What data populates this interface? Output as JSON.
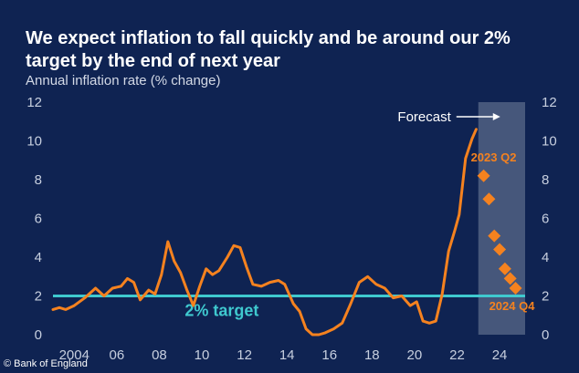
{
  "chart_data": {
    "type": "line",
    "title": "We expect inflation to fall quickly and be around our 2% target by the end of next year",
    "ylabel": "Annual inflation rate (% change)",
    "ylim": [
      0,
      12
    ],
    "xlim": [
      2003,
      2025.2
    ],
    "yticks": [
      0,
      2,
      4,
      6,
      8,
      10,
      12
    ],
    "yticks_right": [
      0,
      2,
      4,
      6,
      8,
      10,
      12
    ],
    "xtick_labels": [
      {
        "x": 2004,
        "label": "2004"
      },
      {
        "x": 2006,
        "label": "06"
      },
      {
        "x": 2008,
        "label": "08"
      },
      {
        "x": 2010,
        "label": "10"
      },
      {
        "x": 2012,
        "label": "12"
      },
      {
        "x": 2014,
        "label": "14"
      },
      {
        "x": 2016,
        "label": "16"
      },
      {
        "x": 2018,
        "label": "18"
      },
      {
        "x": 2020,
        "label": "20"
      },
      {
        "x": 2022,
        "label": "22"
      },
      {
        "x": 2024,
        "label": "24"
      }
    ],
    "series": [
      {
        "name": "Annual inflation rate",
        "color": "#f5821f",
        "x": [
          2003.0,
          2003.3,
          2003.6,
          2004.0,
          2004.5,
          2005.0,
          2005.4,
          2005.8,
          2006.2,
          2006.5,
          2006.8,
          2007.1,
          2007.5,
          2007.8,
          2008.1,
          2008.4,
          2008.7,
          2009.0,
          2009.3,
          2009.6,
          2009.9,
          2010.2,
          2010.5,
          2010.8,
          2011.2,
          2011.5,
          2011.8,
          2012.1,
          2012.4,
          2012.8,
          2013.2,
          2013.6,
          2013.9,
          2014.3,
          2014.6,
          2014.9,
          2015.2,
          2015.5,
          2015.8,
          2016.2,
          2016.6,
          2017.0,
          2017.4,
          2017.8,
          2018.2,
          2018.6,
          2019.0,
          2019.4,
          2019.8,
          2020.1,
          2020.4,
          2020.7,
          2021.0,
          2021.3,
          2021.6,
          2021.9,
          2022.1,
          2022.4,
          2022.7,
          2022.9
        ],
        "values": [
          1.3,
          1.4,
          1.3,
          1.5,
          1.9,
          2.4,
          2.0,
          2.4,
          2.5,
          2.9,
          2.7,
          1.8,
          2.3,
          2.1,
          3.1,
          4.8,
          3.8,
          3.2,
          2.3,
          1.5,
          2.5,
          3.4,
          3.1,
          3.3,
          4.0,
          4.6,
          4.5,
          3.5,
          2.6,
          2.5,
          2.7,
          2.8,
          2.6,
          1.6,
          1.2,
          0.3,
          0.0,
          0.0,
          0.1,
          0.3,
          0.6,
          1.6,
          2.7,
          3.0,
          2.6,
          2.4,
          1.9,
          2.0,
          1.5,
          1.7,
          0.7,
          0.6,
          0.7,
          2.1,
          4.3,
          5.4,
          6.2,
          9.1,
          10.1,
          10.6
        ]
      },
      {
        "name": "Forecast",
        "color": "#f5821f",
        "marker": "diamond",
        "x": [
          2023.25,
          2023.5,
          2023.75,
          2024.0,
          2024.25,
          2024.5,
          2024.75
        ],
        "values": [
          8.2,
          7.0,
          5.1,
          4.4,
          3.4,
          2.9,
          2.4
        ]
      }
    ],
    "target": {
      "value": 2,
      "label": "2% target",
      "color": "#3fc9cf"
    },
    "forecast_region": {
      "x_start": 2023.0,
      "x_end": 2025.2,
      "label": "Forecast"
    },
    "annotations": [
      {
        "text": "2023 Q2",
        "x": 2023.25,
        "y": 8.2
      },
      {
        "text": "2024 Q4",
        "x": 2024.75,
        "y": 2.4
      }
    ]
  },
  "title": "We expect inflation to fall quickly and be around our 2% target by the end of next year",
  "subtitle": "Annual inflation rate (% change)",
  "credit": "© Bank of England"
}
